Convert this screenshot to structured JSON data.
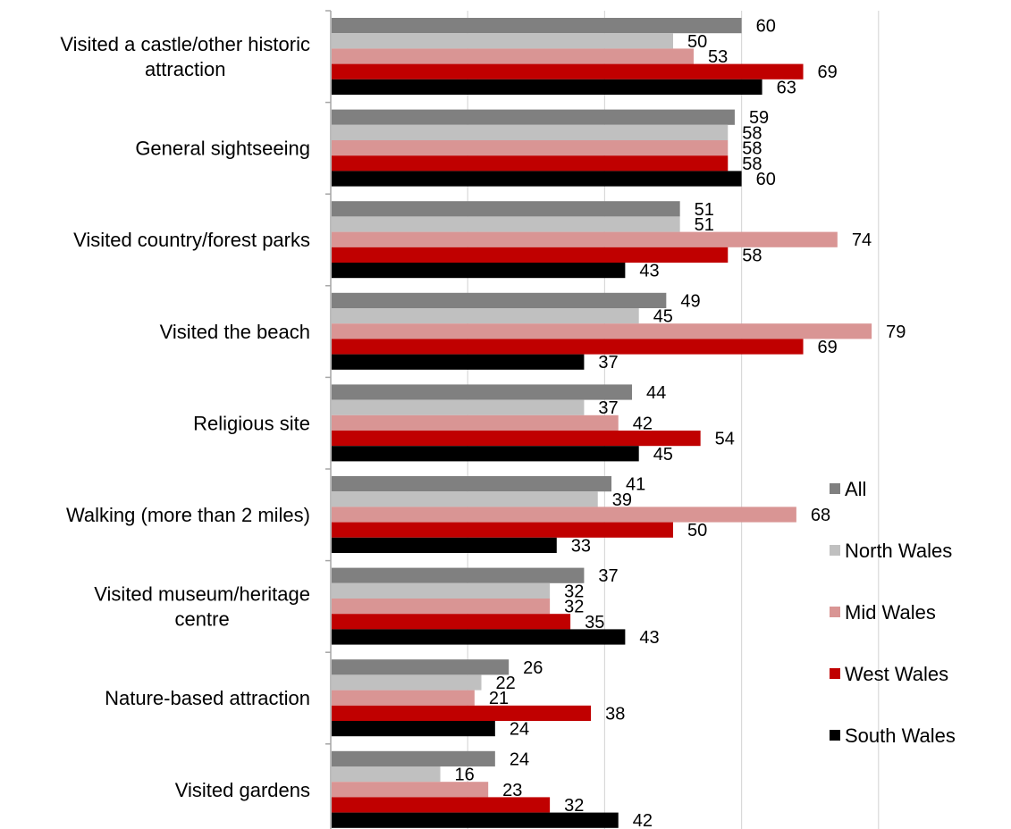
{
  "chart_data": {
    "type": "bar",
    "orientation": "horizontal",
    "title": "",
    "xlabel": "",
    "ylabel": "",
    "xlim": [
      0,
      80
    ],
    "gridlines": "vertical",
    "legend_position": "right",
    "categories": [
      [
        "Visited a castle/other historic",
        "attraction"
      ],
      [
        "General sightseeing"
      ],
      [
        "Visited country/forest parks"
      ],
      [
        "Visited the beach"
      ],
      [
        "Religious site"
      ],
      [
        "Walking (more than 2 miles)"
      ],
      [
        "Visited museum/heritage",
        "centre"
      ],
      [
        "Nature-based attraction"
      ],
      [
        "Visited gardens"
      ]
    ],
    "series": [
      {
        "name": "All",
        "color": "#808080",
        "values": [
          60,
          59,
          51,
          49,
          44,
          41,
          37,
          26,
          24
        ]
      },
      {
        "name": "North Wales",
        "color": "#c0c0c0",
        "values": [
          50,
          58,
          51,
          45,
          37,
          39,
          32,
          22,
          16
        ]
      },
      {
        "name": "Mid Wales",
        "color": "#d99594",
        "values": [
          53,
          58,
          74,
          79,
          42,
          68,
          32,
          21,
          23
        ]
      },
      {
        "name": "West Wales",
        "color": "#c00000",
        "values": [
          69,
          58,
          58,
          69,
          54,
          50,
          35,
          38,
          32
        ]
      },
      {
        "name": "South Wales",
        "color": "#000000",
        "values": [
          63,
          60,
          43,
          37,
          45,
          33,
          43,
          24,
          42
        ]
      }
    ]
  }
}
